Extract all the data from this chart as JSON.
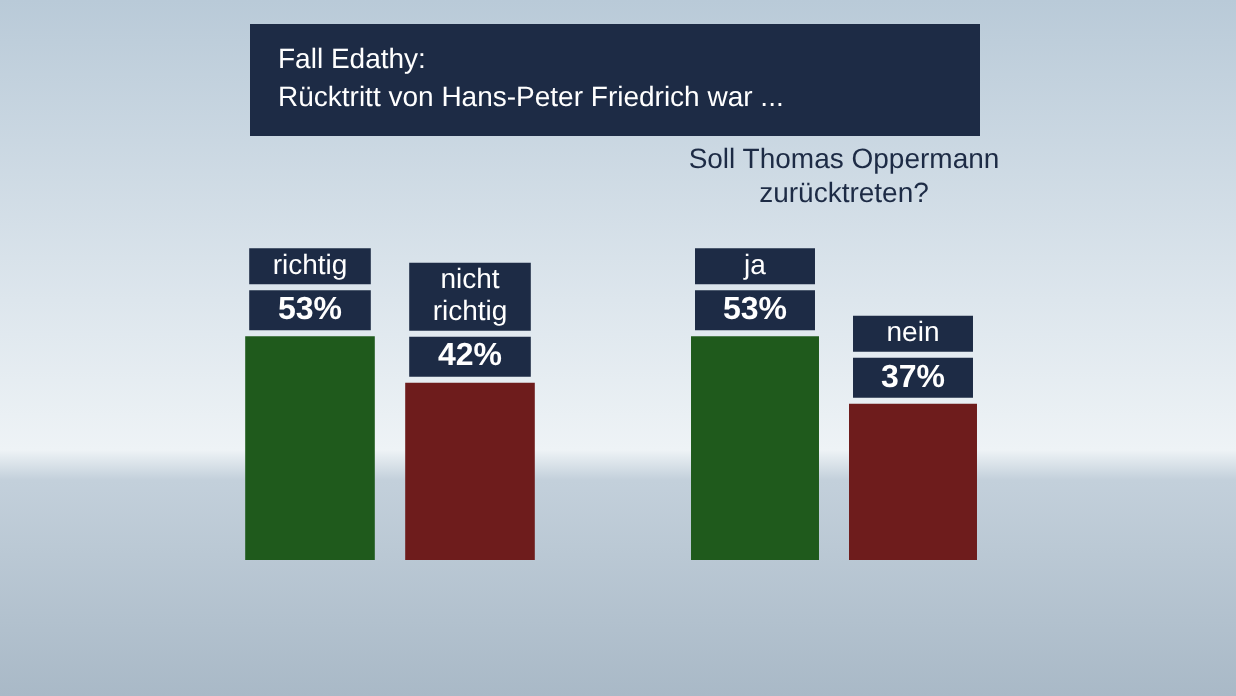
{
  "chart_data": [
    {
      "type": "bar",
      "title": "Fall Edathy:",
      "subtitle": "Rücktritt von Hans-Peter Friedrich war ...",
      "categories": [
        "richtig",
        "nicht richtig"
      ],
      "values": [
        53,
        42
      ],
      "colors": [
        "#1f5a1c",
        "#6e1c1c"
      ],
      "value_labels": [
        "53%",
        "42%"
      ],
      "legend": false
    },
    {
      "type": "bar",
      "title": "Soll Thomas Oppermann zurücktreten?",
      "categories": [
        "ja",
        "nein"
      ],
      "values": [
        53,
        37
      ],
      "colors": [
        "#1f5a1c",
        "#6e1c1c"
      ],
      "value_labels": [
        "53%",
        "37%"
      ],
      "legend": false
    }
  ]
}
